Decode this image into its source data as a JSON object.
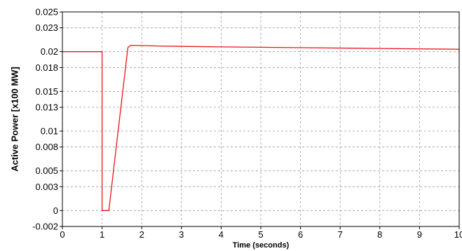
{
  "chart_data": {
    "type": "line",
    "title": "",
    "xlabel": "Time (seconds)",
    "ylabel": "Active Power [x100 MW]",
    "xlim": [
      0,
      10
    ],
    "ylim": [
      -0.002,
      0.025
    ],
    "grid": true,
    "grid_style": "dashed",
    "x_ticks": [
      0,
      1,
      2,
      3,
      4,
      5,
      6,
      7,
      8,
      9,
      10
    ],
    "x_tick_labels": [
      "0",
      "1",
      "2",
      "3",
      "4",
      "5",
      "6",
      "7",
      "8",
      "9",
      "10"
    ],
    "y_ticks": [
      -0.002,
      0,
      0.003,
      0.005,
      0.008,
      0.01,
      0.013,
      0.015,
      0.018,
      0.02,
      0.023,
      0.025
    ],
    "y_tick_labels": [
      "-0.002",
      "0",
      "0.003",
      "0.005",
      "0.008",
      "0.01",
      "0.013",
      "0.015",
      "0.018",
      "0.02",
      "0.023",
      "0.025"
    ],
    "series": [
      {
        "color": "#e8141c",
        "x": [
          0,
          1.0,
          1.0,
          1.17,
          1.17,
          1.65,
          1.72,
          2.5,
          4.0,
          6.0,
          8.0,
          10.0
        ],
        "y": [
          0.02,
          0.02,
          0.0,
          0.0,
          0.0,
          0.0205,
          0.0208,
          0.0207,
          0.0206,
          0.0205,
          0.0204,
          0.0203
        ]
      }
    ],
    "axis_color": "#000000",
    "grid_color": "#9a9a9a"
  }
}
